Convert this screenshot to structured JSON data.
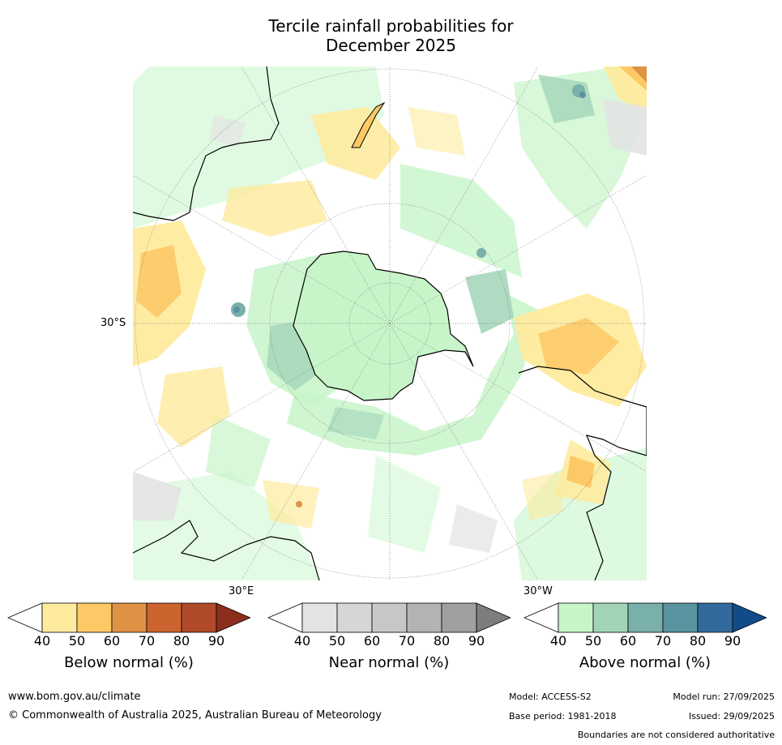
{
  "title_line1": "Tercile rainfall probabilities for",
  "title_line2": "December 2025",
  "map": {
    "labels": {
      "lat_30s": "30°S",
      "lon_30e": "30°E",
      "lon_30w": "30°W"
    }
  },
  "colorbars": [
    {
      "name": "below-normal",
      "label": "Below normal (%)",
      "ticks": [
        "40",
        "50",
        "60",
        "70",
        "80",
        "90"
      ],
      "colors": [
        "#ffffff",
        "#feeb9e",
        "#fdc966",
        "#e09244",
        "#cc6430",
        "#b04a28",
        "#8c2e1c"
      ]
    },
    {
      "name": "near-normal",
      "label": "Near normal (%)",
      "ticks": [
        "40",
        "50",
        "60",
        "70",
        "80",
        "90"
      ],
      "colors": [
        "#ffffff",
        "#e3e3e3",
        "#d6d6d6",
        "#c7c7c7",
        "#b3b3b3",
        "#a0a0a0",
        "#7d7d7d"
      ]
    },
    {
      "name": "above-normal",
      "label": "Above normal (%)",
      "ticks": [
        "40",
        "50",
        "60",
        "70",
        "80",
        "90"
      ],
      "colors": [
        "#ffffff",
        "#c7f5c9",
        "#a2d5b8",
        "#7ab0aa",
        "#5a93a0",
        "#336a9e",
        "#134b8a"
      ]
    }
  ],
  "footer": {
    "url": "www.bom.gov.au/climate",
    "copyright": "© Commonwealth of Australia 2025, Australian Bureau of Meteorology",
    "model": "Model: ACCESS-S2",
    "base_period": "Base period: 1981-2018",
    "model_run": "Model run: 27/09/2025",
    "issued": "Issued: 29/09/2025",
    "disclaimer": "Boundaries are not considered authoritative"
  }
}
